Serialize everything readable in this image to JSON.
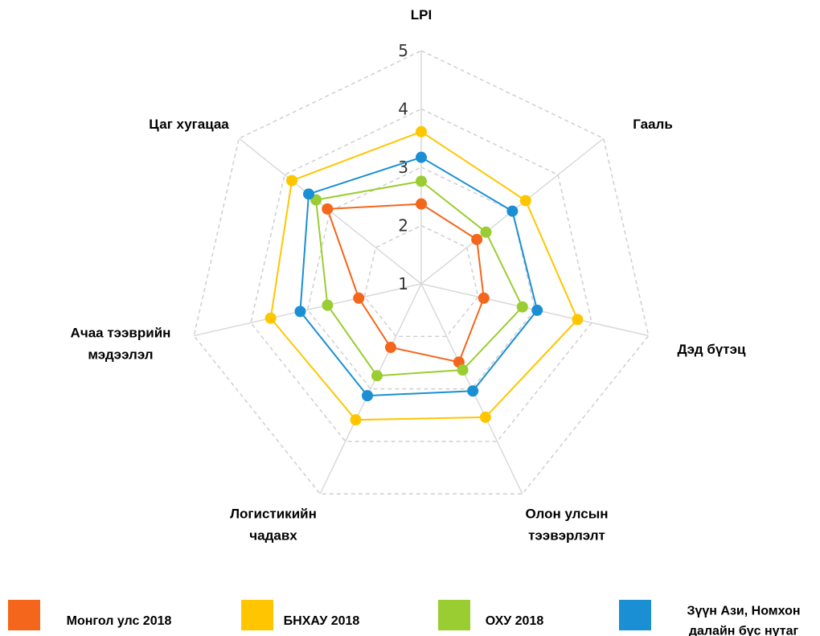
{
  "chart_data": {
    "type": "radar",
    "categories": [
      "LPI",
      "Гааль",
      "Дэд бүтэц",
      "Олон улсын\nтээвэрлэлт",
      "Логистикийн\nчадавх",
      "Ачаа тээврийн\nмэдээлэл",
      "Цаг хугацаа"
    ],
    "ylim": [
      1,
      5
    ],
    "yticks": [
      1,
      2,
      3,
      4,
      5
    ],
    "grid": true,
    "legend": "bottom",
    "series": [
      {
        "name": "Монгол улс 2018",
        "color": "#f4661b",
        "values": [
          2.37,
          2.22,
          2.1,
          2.49,
          2.21,
          2.1,
          3.06
        ]
      },
      {
        "name": "БНХАУ 2018",
        "color": "#ffc600",
        "values": [
          3.61,
          3.29,
          3.75,
          3.54,
          3.59,
          3.65,
          3.84
        ]
      },
      {
        "name": "ОХУ 2018",
        "color": "#9acd32",
        "values": [
          2.76,
          2.42,
          2.78,
          2.64,
          2.75,
          2.65,
          3.31
        ]
      },
      {
        "name": "Зүүн Ази, Номхон\nдалайн бүс нутаг",
        "color": "#1b8fd3",
        "values": [
          3.17,
          3.0,
          3.04,
          3.04,
          3.13,
          3.13,
          3.47
        ]
      }
    ]
  }
}
